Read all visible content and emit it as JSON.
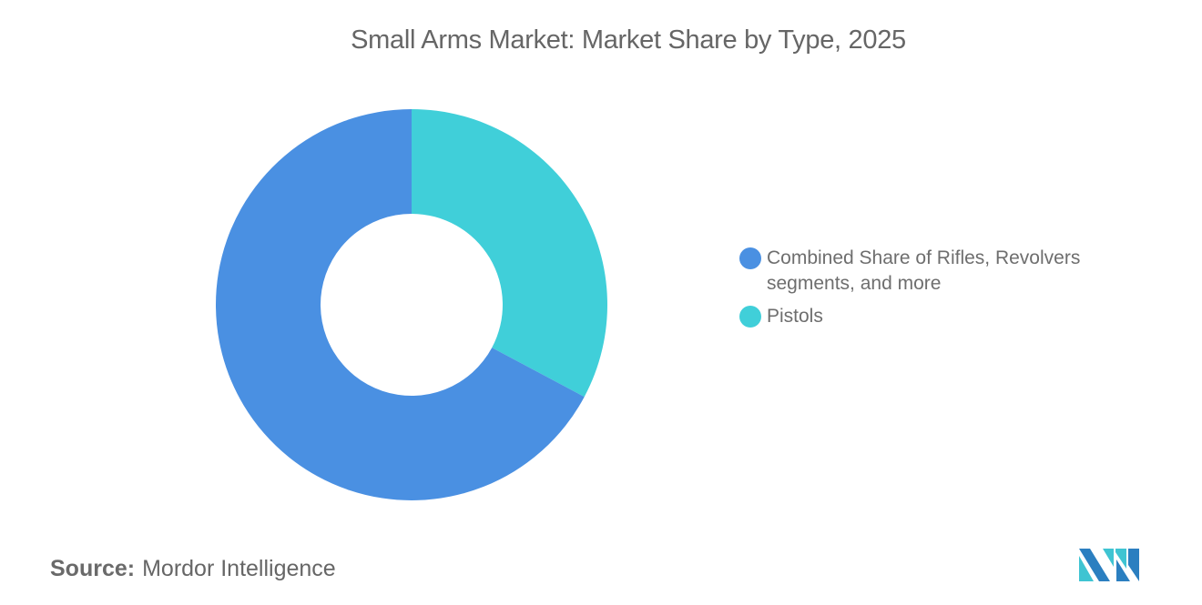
{
  "header": {
    "title": "Small Arms Market: Market Share by Type, 2025"
  },
  "chart_data": {
    "type": "pie",
    "variant": "donut",
    "title": "Small Arms Market: Market Share by Type, 2025",
    "categories": [
      "Combined Share of Rifles, Revolvers segments, and more",
      "Pistols"
    ],
    "values": [
      67.2,
      32.8
    ],
    "unit": "%",
    "colors": [
      "#4a90e2",
      "#40cfd9"
    ],
    "legend_position": "right",
    "start_angle_deg": 0,
    "direction": "clockwise (Pistols first from 12 o'clock)"
  },
  "legend": {
    "items": [
      {
        "label": "Combined Share of Rifles, Revolvers segments, and more",
        "color": "#4a90e2"
      },
      {
        "label": "Pistols",
        "color": "#40cfd9"
      }
    ]
  },
  "footer": {
    "source_label": "Source:",
    "source_value": "Mordor Intelligence",
    "logo": "mordor-intelligence-logo"
  }
}
